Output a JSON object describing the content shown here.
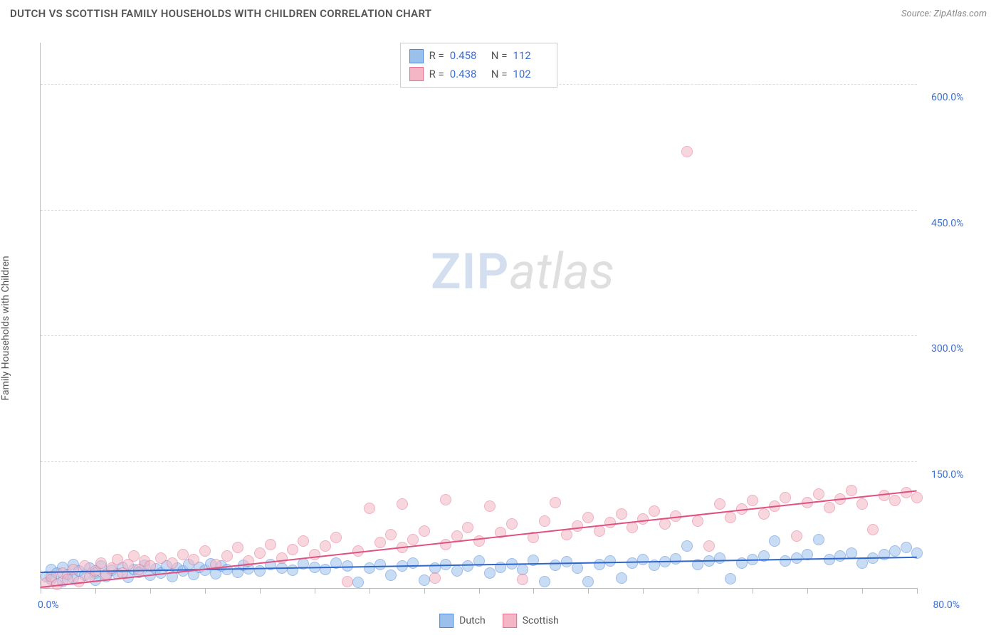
{
  "header": {
    "title": "DUTCH VS SCOTTISH FAMILY HOUSEHOLDS WITH CHILDREN CORRELATION CHART",
    "source_prefix": "Source: ",
    "source_name": "ZipAtlas.com"
  },
  "watermark": {
    "part1": "ZIP",
    "part2": "atlas"
  },
  "chart": {
    "type": "scatter",
    "y_axis_label": "Family Households with Children",
    "xlim": [
      0,
      80
    ],
    "ylim": [
      0,
      650
    ],
    "x_ticks": [
      0,
      5,
      10,
      15,
      20,
      25,
      30,
      35,
      40,
      45,
      50,
      55,
      60,
      65,
      70,
      75,
      80
    ],
    "x_tick_labels": {
      "0": "0.0%",
      "80": "80.0%"
    },
    "y_gridlines": [
      150,
      300,
      450,
      600
    ],
    "y_tick_labels": {
      "150": "150.0%",
      "300": "300.0%",
      "450": "450.0%",
      "600": "600.0%"
    },
    "background_color": "#ffffff",
    "grid_color": "#dddddd",
    "axis_color": "#bbbbbb",
    "tick_label_color": "#3b6fd6",
    "marker_radius": 8,
    "marker_opacity": 0.55,
    "marker_border_width": 1.2,
    "series": [
      {
        "name": "Dutch",
        "fill_color": "#9cc0ec",
        "stroke_color": "#4f86d9",
        "R": "0.458",
        "N": "112",
        "trend": {
          "x1": 0,
          "y1": 18,
          "x2": 80,
          "y2": 36,
          "color": "#2f66c9",
          "width": 2
        },
        "points": [
          [
            0.5,
            14
          ],
          [
            1,
            10
          ],
          [
            1,
            22
          ],
          [
            1.5,
            18
          ],
          [
            2,
            8
          ],
          [
            2,
            25
          ],
          [
            2.5,
            16
          ],
          [
            3,
            12
          ],
          [
            3,
            28
          ],
          [
            3.5,
            20
          ],
          [
            4,
            15
          ],
          [
            4.5,
            24
          ],
          [
            5,
            18
          ],
          [
            5,
            9
          ],
          [
            5.5,
            26
          ],
          [
            6,
            14
          ],
          [
            6.5,
            21
          ],
          [
            7,
            17
          ],
          [
            7.5,
            25
          ],
          [
            8,
            13
          ],
          [
            8.5,
            22
          ],
          [
            9,
            19
          ],
          [
            9.5,
            27
          ],
          [
            10,
            15
          ],
          [
            10.5,
            23
          ],
          [
            11,
            18
          ],
          [
            11.5,
            26
          ],
          [
            12,
            14
          ],
          [
            12.5,
            24
          ],
          [
            13,
            20
          ],
          [
            13.5,
            28
          ],
          [
            14,
            16
          ],
          [
            14.5,
            25
          ],
          [
            15,
            21
          ],
          [
            15.5,
            29
          ],
          [
            16,
            17
          ],
          [
            16.5,
            26
          ],
          [
            17,
            22
          ],
          [
            18,
            19
          ],
          [
            18.5,
            27
          ],
          [
            19,
            23
          ],
          [
            20,
            20
          ],
          [
            21,
            28
          ],
          [
            22,
            24
          ],
          [
            23,
            21
          ],
          [
            24,
            29
          ],
          [
            25,
            25
          ],
          [
            26,
            22
          ],
          [
            27,
            30
          ],
          [
            28,
            26
          ],
          [
            29,
            7
          ],
          [
            30,
            24
          ],
          [
            31,
            28
          ],
          [
            32,
            15
          ],
          [
            33,
            26
          ],
          [
            34,
            30
          ],
          [
            35,
            9
          ],
          [
            36,
            24
          ],
          [
            37,
            28
          ],
          [
            38,
            20
          ],
          [
            39,
            26
          ],
          [
            40,
            32
          ],
          [
            41,
            18
          ],
          [
            42,
            25
          ],
          [
            43,
            29
          ],
          [
            44,
            22
          ],
          [
            45,
            33
          ],
          [
            46,
            8
          ],
          [
            47,
            27
          ],
          [
            48,
            31
          ],
          [
            49,
            24
          ],
          [
            50,
            8
          ],
          [
            51,
            28
          ],
          [
            52,
            32
          ],
          [
            53,
            12
          ],
          [
            54,
            30
          ],
          [
            55,
            34
          ],
          [
            56,
            27
          ],
          [
            57,
            31
          ],
          [
            58,
            35
          ],
          [
            59,
            50
          ],
          [
            60,
            28
          ],
          [
            61,
            32
          ],
          [
            62,
            36
          ],
          [
            63,
            11
          ],
          [
            64,
            30
          ],
          [
            65,
            34
          ],
          [
            66,
            38
          ],
          [
            67,
            56
          ],
          [
            68,
            32
          ],
          [
            69,
            36
          ],
          [
            70,
            40
          ],
          [
            71,
            58
          ],
          [
            72,
            34
          ],
          [
            73,
            38
          ],
          [
            74,
            42
          ],
          [
            75,
            30
          ],
          [
            76,
            36
          ],
          [
            77,
            40
          ],
          [
            78,
            44
          ],
          [
            79,
            48
          ],
          [
            80,
            42
          ]
        ]
      },
      {
        "name": "Scottish",
        "fill_color": "#f4b6c4",
        "stroke_color": "#e46f8f",
        "R": "0.438",
        "N": "102",
        "trend": {
          "x1": 0,
          "y1": 0,
          "x2": 80,
          "y2": 115,
          "color": "#e05080",
          "width": 2
        },
        "points": [
          [
            0.5,
            6
          ],
          [
            1,
            14
          ],
          [
            1.5,
            4
          ],
          [
            2,
            18
          ],
          [
            2.5,
            10
          ],
          [
            3,
            22
          ],
          [
            3.5,
            8
          ],
          [
            4,
            26
          ],
          [
            4.5,
            14
          ],
          [
            5,
            20
          ],
          [
            5.5,
            30
          ],
          [
            6,
            16
          ],
          [
            6.5,
            24
          ],
          [
            7,
            34
          ],
          [
            7.5,
            18
          ],
          [
            8,
            28
          ],
          [
            8.5,
            38
          ],
          [
            9,
            22
          ],
          [
            9.5,
            32
          ],
          [
            10,
            26
          ],
          [
            11,
            36
          ],
          [
            12,
            30
          ],
          [
            13,
            40
          ],
          [
            14,
            34
          ],
          [
            15,
            44
          ],
          [
            16,
            28
          ],
          [
            17,
            38
          ],
          [
            18,
            48
          ],
          [
            19,
            32
          ],
          [
            20,
            42
          ],
          [
            21,
            52
          ],
          [
            22,
            36
          ],
          [
            23,
            46
          ],
          [
            24,
            56
          ],
          [
            25,
            40
          ],
          [
            26,
            50
          ],
          [
            27,
            60
          ],
          [
            28,
            8
          ],
          [
            29,
            44
          ],
          [
            30,
            95
          ],
          [
            31,
            54
          ],
          [
            32,
            64
          ],
          [
            33,
            48
          ],
          [
            33,
            100
          ],
          [
            34,
            58
          ],
          [
            35,
            68
          ],
          [
            36,
            12
          ],
          [
            37,
            52
          ],
          [
            37,
            105
          ],
          [
            38,
            62
          ],
          [
            39,
            72
          ],
          [
            40,
            56
          ],
          [
            41,
            98
          ],
          [
            42,
            66
          ],
          [
            43,
            76
          ],
          [
            44,
            10
          ],
          [
            45,
            60
          ],
          [
            46,
            80
          ],
          [
            47,
            102
          ],
          [
            48,
            64
          ],
          [
            49,
            74
          ],
          [
            50,
            84
          ],
          [
            51,
            68
          ],
          [
            52,
            78
          ],
          [
            53,
            88
          ],
          [
            54,
            72
          ],
          [
            55,
            82
          ],
          [
            56,
            92
          ],
          [
            57,
            76
          ],
          [
            58,
            86
          ],
          [
            59,
            520
          ],
          [
            60,
            80
          ],
          [
            61,
            50
          ],
          [
            62,
            100
          ],
          [
            63,
            84
          ],
          [
            64,
            94
          ],
          [
            65,
            104
          ],
          [
            66,
            88
          ],
          [
            67,
            98
          ],
          [
            68,
            108
          ],
          [
            69,
            62
          ],
          [
            70,
            102
          ],
          [
            71,
            112
          ],
          [
            72,
            96
          ],
          [
            73,
            106
          ],
          [
            74,
            116
          ],
          [
            75,
            100
          ],
          [
            76,
            70
          ],
          [
            77,
            110
          ],
          [
            78,
            104
          ],
          [
            79,
            114
          ],
          [
            80,
            108
          ]
        ]
      }
    ],
    "legend_bottom": [
      {
        "label": "Dutch",
        "swatch_fill": "#9cc0ec",
        "swatch_stroke": "#4f86d9"
      },
      {
        "label": "Scottish",
        "swatch_fill": "#f4b6c4",
        "swatch_stroke": "#e46f8f"
      }
    ],
    "legend_top_labels": {
      "R": "R =",
      "N": "N ="
    }
  }
}
